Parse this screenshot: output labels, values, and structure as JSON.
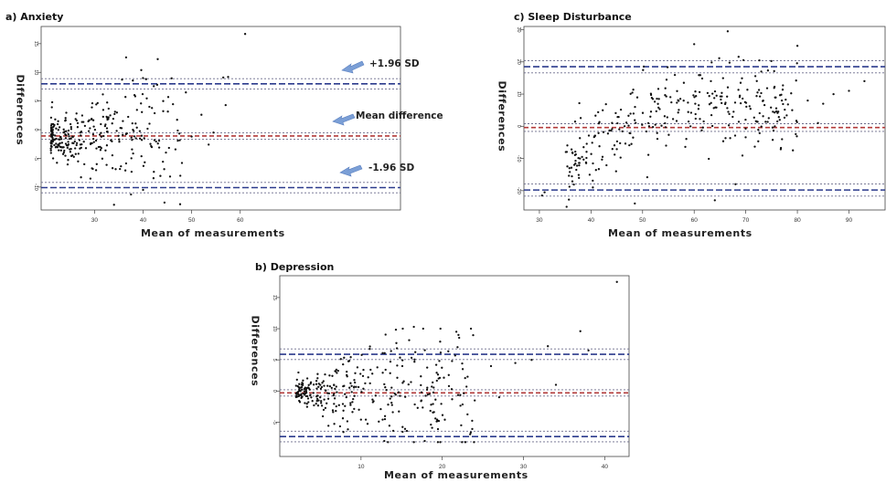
{
  "chart_data": [
    {
      "id": "anxiety",
      "type": "scatter",
      "title": "a) Anxiety",
      "xlabel": "Mean of measurements",
      "ylabel": "Differences",
      "xlim": [
        19,
        93
      ],
      "ylim": [
        -14,
        18
      ],
      "xticks": [
        30,
        40,
        50,
        60
      ],
      "yticks": [
        -10,
        -5,
        0,
        5,
        10,
        15
      ],
      "bands": [
        {
          "kind": "upper",
          "center": 8.0,
          "halfwidth": 0.9,
          "color": "#2b3a8c"
        },
        {
          "kind": "mean",
          "center": -1.1,
          "halfwidth": 0.55,
          "color": "#b23a3a"
        },
        {
          "kind": "lower",
          "center": -10.1,
          "halfwidth": 0.9,
          "color": "#2b3a8c"
        }
      ],
      "annotations": [
        "+1.96 SD",
        "Mean difference",
        "-1.96 SD"
      ],
      "points": {
        "n": 300,
        "seed": 11,
        "x0": 21,
        "xr": 27,
        "xpow": 1.7,
        "sdA": 1.6,
        "sdB": 0.2,
        "sdRef": 21,
        "mean": -1.1,
        "clip": [
          -13,
          11
        ],
        "extra": [
          [
            36.5,
            12.6
          ],
          [
            43,
            12.3
          ],
          [
            61,
            16.7
          ],
          [
            57.5,
            9.2
          ],
          [
            56.5,
            9.1
          ],
          [
            57,
            4.3
          ],
          [
            48.8,
            6.5
          ],
          [
            52,
            2.6
          ],
          [
            54.5,
            -0.5
          ],
          [
            50,
            -1.2
          ],
          [
            53.5,
            -2.6
          ],
          [
            34,
            -13.1
          ],
          [
            40,
            -10.5
          ],
          [
            37.5,
            -11.3
          ]
        ]
      }
    },
    {
      "id": "sleep",
      "type": "scatter",
      "title": "c) Sleep Disturbance",
      "xlabel": "Mean of measurements",
      "ylabel": "Differences",
      "xlim": [
        27,
        97
      ],
      "ylim": [
        -26,
        31
      ],
      "xticks": [
        30,
        40,
        50,
        60,
        70,
        80,
        90
      ],
      "yticks": [
        -20,
        -10,
        0,
        10,
        20,
        30
      ],
      "bands": [
        {
          "kind": "upper",
          "center": 18.5,
          "halfwidth": 1.9,
          "color": "#2b3a8c"
        },
        {
          "kind": "mean",
          "center": -0.4,
          "halfwidth": 1.2,
          "color": "#b23a3a"
        },
        {
          "kind": "lower",
          "center": -19.8,
          "halfwidth": 1.9,
          "color": "#2b3a8c"
        }
      ],
      "annotations": [],
      "points": {
        "n": 310,
        "seed": 23,
        "x0": 35,
        "xr": 45,
        "xpow": 1.1,
        "trend": [
          30,
          -20,
          50,
          6
        ],
        "sdA": 6,
        "sdB": 0,
        "sdRef": 0,
        "mean": 0,
        "clip": [
          -25,
          28
        ],
        "extra": [
          [
            66.5,
            29.5
          ],
          [
            60,
            25.5
          ],
          [
            80,
            25
          ],
          [
            31,
            -20.5
          ],
          [
            30.5,
            -21.5
          ],
          [
            48.5,
            -24
          ],
          [
            64,
            -23
          ],
          [
            73,
            17
          ],
          [
            69,
            13.5
          ],
          [
            68,
            -18
          ],
          [
            79,
            5
          ],
          [
            84,
            1
          ],
          [
            87,
            10
          ],
          [
            90,
            11
          ],
          [
            93,
            14
          ],
          [
            85,
            7
          ],
          [
            82,
            8
          ],
          [
            77,
            8
          ]
        ]
      }
    },
    {
      "id": "depression",
      "type": "scatter",
      "title": "b) Depression",
      "xlabel": "Mean of measurements",
      "ylabel": "Differences",
      "xlim": [
        0,
        43
      ],
      "ylim": [
        -10.5,
        18.5
      ],
      "xticks": [
        10,
        20,
        30,
        40
      ],
      "yticks": [
        -5,
        0,
        5,
        10,
        15
      ],
      "bands": [
        {
          "kind": "upper",
          "center": 5.9,
          "halfwidth": 0.85,
          "color": "#2b3a8c"
        },
        {
          "kind": "mean",
          "center": -0.3,
          "halfwidth": 0.5,
          "color": "#b23a3a"
        },
        {
          "kind": "lower",
          "center": -7.3,
          "halfwidth": 0.85,
          "color": "#2b3a8c"
        }
      ],
      "annotations": [],
      "points": {
        "n": 330,
        "seed": 37,
        "x0": 2,
        "xr": 22,
        "xpow": 1.5,
        "sdA": 1.0,
        "sdB": 0.28,
        "sdRef": 2,
        "mean": -0.3,
        "clip": [
          -8.2,
          10
        ],
        "extra": [
          [
            41.5,
            17.5
          ],
          [
            37,
            9.6
          ],
          [
            16.5,
            10.3
          ],
          [
            22,
            9
          ],
          [
            33,
            7.2
          ],
          [
            29,
            4.5
          ],
          [
            31,
            5
          ],
          [
            26,
            4
          ],
          [
            34,
            1
          ],
          [
            38,
            6.5
          ],
          [
            24,
            -1.5
          ],
          [
            27,
            -1
          ]
        ]
      }
    }
  ]
}
